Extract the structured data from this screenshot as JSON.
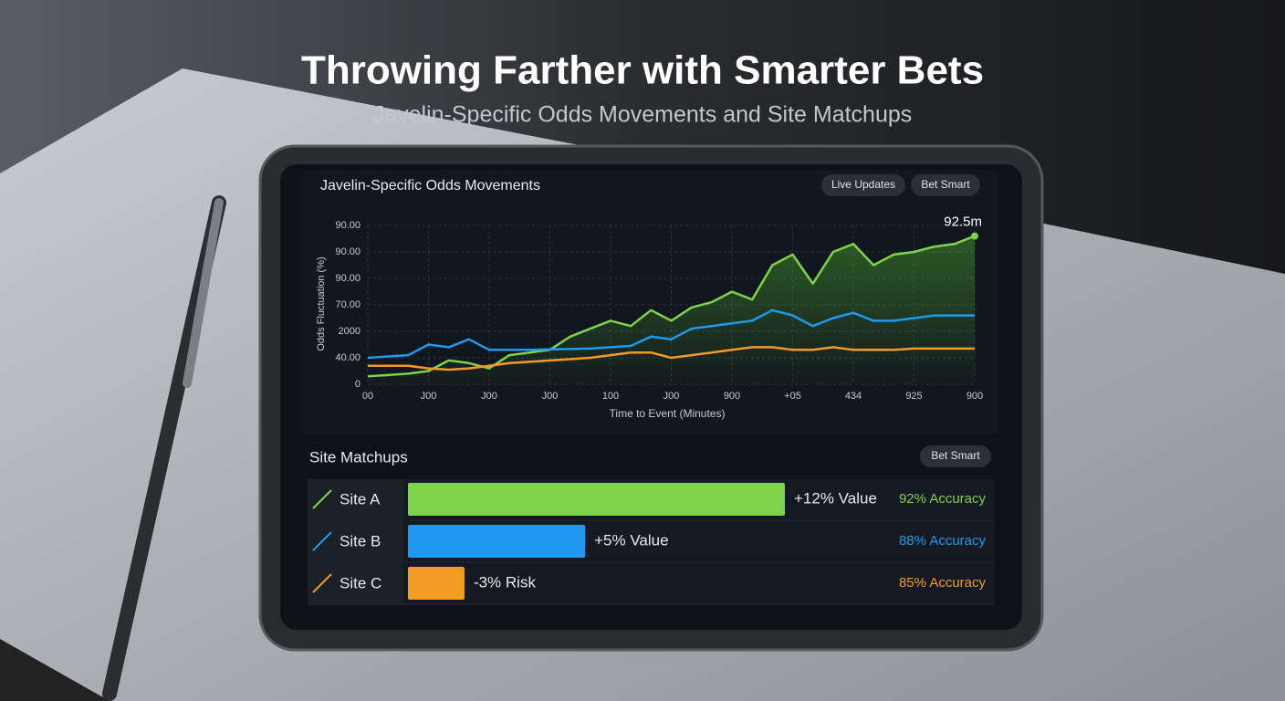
{
  "header": {
    "title": "Throwing Farther with Smarter Bets",
    "subtitle": "Javelin-Specific Odds Movements and Site Matchups"
  },
  "panel": {
    "title": "Javelin-Specific Odds Movements",
    "buttons": [
      "Live Updates",
      "Bet Smart"
    ]
  },
  "chart_data": {
    "type": "line",
    "y_label": "Odds Fluctuation (%)",
    "x_label": "Time to Event (Minutes)",
    "annotation": "92.5m",
    "x": [
      0,
      1,
      2,
      3,
      4,
      5,
      6,
      7,
      8,
      9,
      10,
      11,
      12,
      13,
      14,
      15,
      16,
      17,
      18,
      19,
      20,
      21,
      22,
      23,
      24,
      25,
      26,
      27,
      28,
      29,
      30
    ],
    "xlim": [
      0,
      30
    ],
    "xticks": [
      {
        "value": 0,
        "label": "00"
      },
      {
        "value": 3,
        "label": "J00"
      },
      {
        "value": 6,
        "label": "J00"
      },
      {
        "value": 9,
        "label": "J00"
      },
      {
        "value": 12,
        "label": "100"
      },
      {
        "value": 15,
        "label": "J00"
      },
      {
        "value": 18,
        "label": "900"
      },
      {
        "value": 21,
        "label": "+05"
      },
      {
        "value": 24,
        "label": "434"
      },
      {
        "value": 27,
        "label": "925"
      },
      {
        "value": 30,
        "label": "900"
      }
    ],
    "ylim": [
      0,
      6
    ],
    "yticks": [
      0,
      {
        "value": 1,
        "label": "40.00"
      },
      {
        "value": 2,
        "label": "2000"
      },
      {
        "value": 3,
        "label": "70.00"
      },
      {
        "value": 4,
        "label": "90.00"
      },
      {
        "value": 5,
        "label": "90.00"
      },
      {
        "value": 6,
        "label": "90.00"
      }
    ],
    "grid": true,
    "series": [
      {
        "color": "#7ed348",
        "values": [
          0.3,
          0.35,
          0.4,
          0.5,
          0.9,
          0.8,
          0.6,
          1.1,
          1.2,
          1.3,
          1.8,
          2.1,
          2.4,
          2.2,
          2.8,
          2.4,
          2.9,
          3.1,
          3.5,
          3.2,
          4.5,
          4.9,
          3.8,
          5.0,
          5.3,
          4.5,
          4.9,
          5.0,
          5.2,
          5.3,
          5.6
        ]
      },
      {
        "color": "#1e9bf0",
        "values": [
          1.0,
          1.05,
          1.1,
          1.5,
          1.4,
          1.7,
          1.3,
          1.3,
          1.3,
          1.32,
          1.33,
          1.35,
          1.4,
          1.45,
          1.8,
          1.7,
          2.1,
          2.2,
          2.3,
          2.4,
          2.8,
          2.6,
          2.2,
          2.5,
          2.7,
          2.4,
          2.4,
          2.5,
          2.6,
          2.6,
          2.6
        ]
      },
      {
        "color": "#f59a23",
        "values": [
          0.7,
          0.7,
          0.7,
          0.6,
          0.55,
          0.6,
          0.7,
          0.8,
          0.85,
          0.9,
          0.95,
          1.0,
          1.1,
          1.2,
          1.2,
          1.0,
          1.1,
          1.2,
          1.3,
          1.4,
          1.4,
          1.3,
          1.3,
          1.4,
          1.3,
          1.3,
          1.3,
          1.35,
          1.35,
          1.35,
          1.35
        ]
      }
    ]
  },
  "matchups": {
    "title": "Site Matchups",
    "button": "Bet Smart",
    "rows": [
      {
        "site": "Site A",
        "bar": 100,
        "value_label": "+12% Value",
        "accuracy": "92% Accuracy",
        "color": "#7ed348"
      },
      {
        "site": "Site B",
        "bar": 47,
        "value_label": "+5% Value",
        "accuracy": "88% Accuracy",
        "color": "#1e9bf0"
      },
      {
        "site": "Site C",
        "bar": 15,
        "value_label": "-3% Risk",
        "accuracy": "85% Accuracy",
        "color": "#f59a23"
      }
    ]
  }
}
